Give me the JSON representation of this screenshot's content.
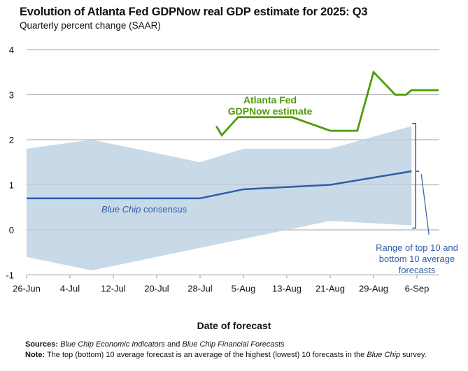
{
  "chart_data": {
    "type": "line",
    "title": "Evolution of Atlanta Fed GDPNow real GDP estimate for 2025: Q3",
    "subtitle": "Quarterly percent change (SAAR)",
    "xlabel": "Date of forecast",
    "ylabel": "",
    "ylim": [
      -1,
      4
    ],
    "yticks": [
      "4",
      "3",
      "2",
      "1",
      "0",
      "-1"
    ],
    "xlim": [
      "2025-06-26",
      "2025-09-10"
    ],
    "xtick_labels": [
      "26-Jun",
      "4-Jul",
      "12-Jul",
      "20-Jul",
      "28-Jul",
      "5-Aug",
      "13-Aug",
      "21-Aug",
      "29-Aug",
      "6-Sep"
    ],
    "xtick_dates": [
      "2025-06-26",
      "2025-07-04",
      "2025-07-12",
      "2025-07-20",
      "2025-07-28",
      "2025-08-05",
      "2025-08-13",
      "2025-08-21",
      "2025-08-29",
      "2025-09-06"
    ],
    "grid": "horizontal",
    "colors": {
      "gdpnow": "#4e9a06",
      "consensus": "#2f5ea8",
      "range": "#c8d9e8",
      "grid": "#b5b5b5"
    },
    "series": [
      {
        "name": "Atlanta Fed GDPNow estimate",
        "label_lines": [
          "Atlanta Fed",
          "GDPNow estimate"
        ],
        "x": [
          "2025-07-31",
          "2025-08-01",
          "2025-08-04",
          "2025-08-14",
          "2025-08-21",
          "2025-08-26",
          "2025-08-29",
          "2025-09-02",
          "2025-09-04",
          "2025-09-05",
          "2025-09-10"
        ],
        "y": [
          2.3,
          2.1,
          2.5,
          2.5,
          2.2,
          2.2,
          3.5,
          3.0,
          3.0,
          3.1,
          3.1
        ]
      },
      {
        "name": "Blue Chip consensus",
        "label_italic": "Blue Chip",
        "label_rest": " consensus",
        "x": [
          "2025-06-26",
          "2025-07-28",
          "2025-08-05",
          "2025-08-21",
          "2025-09-05"
        ],
        "y": [
          0.7,
          0.7,
          0.9,
          1.0,
          1.3
        ]
      }
    ],
    "range_band": {
      "name": "Range of top 10 and bottom 10 average forecasts",
      "label_lines": [
        "Range of top 10 and",
        "bottom 10 average",
        "forecasts"
      ],
      "x": [
        "2025-06-26",
        "2025-07-08",
        "2025-07-28",
        "2025-08-05",
        "2025-08-21",
        "2025-09-05"
      ],
      "upper": [
        1.8,
        2.0,
        1.5,
        1.8,
        1.8,
        2.3
      ],
      "lower": [
        -0.6,
        -0.9,
        -0.4,
        -0.2,
        0.2,
        0.1
      ]
    }
  },
  "footer": {
    "sources_label": "Sources:",
    "sources_italic_1": "Blue Chip Economic Indicators",
    "sources_and": " and ",
    "sources_italic_2": "Blue Chip Financial Forecasts",
    "note_label": "Note:",
    "note_text_1": " The top (bottom) 10 average forecast is an average of the highest (lowest) 10 forecasts in the ",
    "note_italic": "Blue Chip",
    "note_text_2": " survey."
  }
}
